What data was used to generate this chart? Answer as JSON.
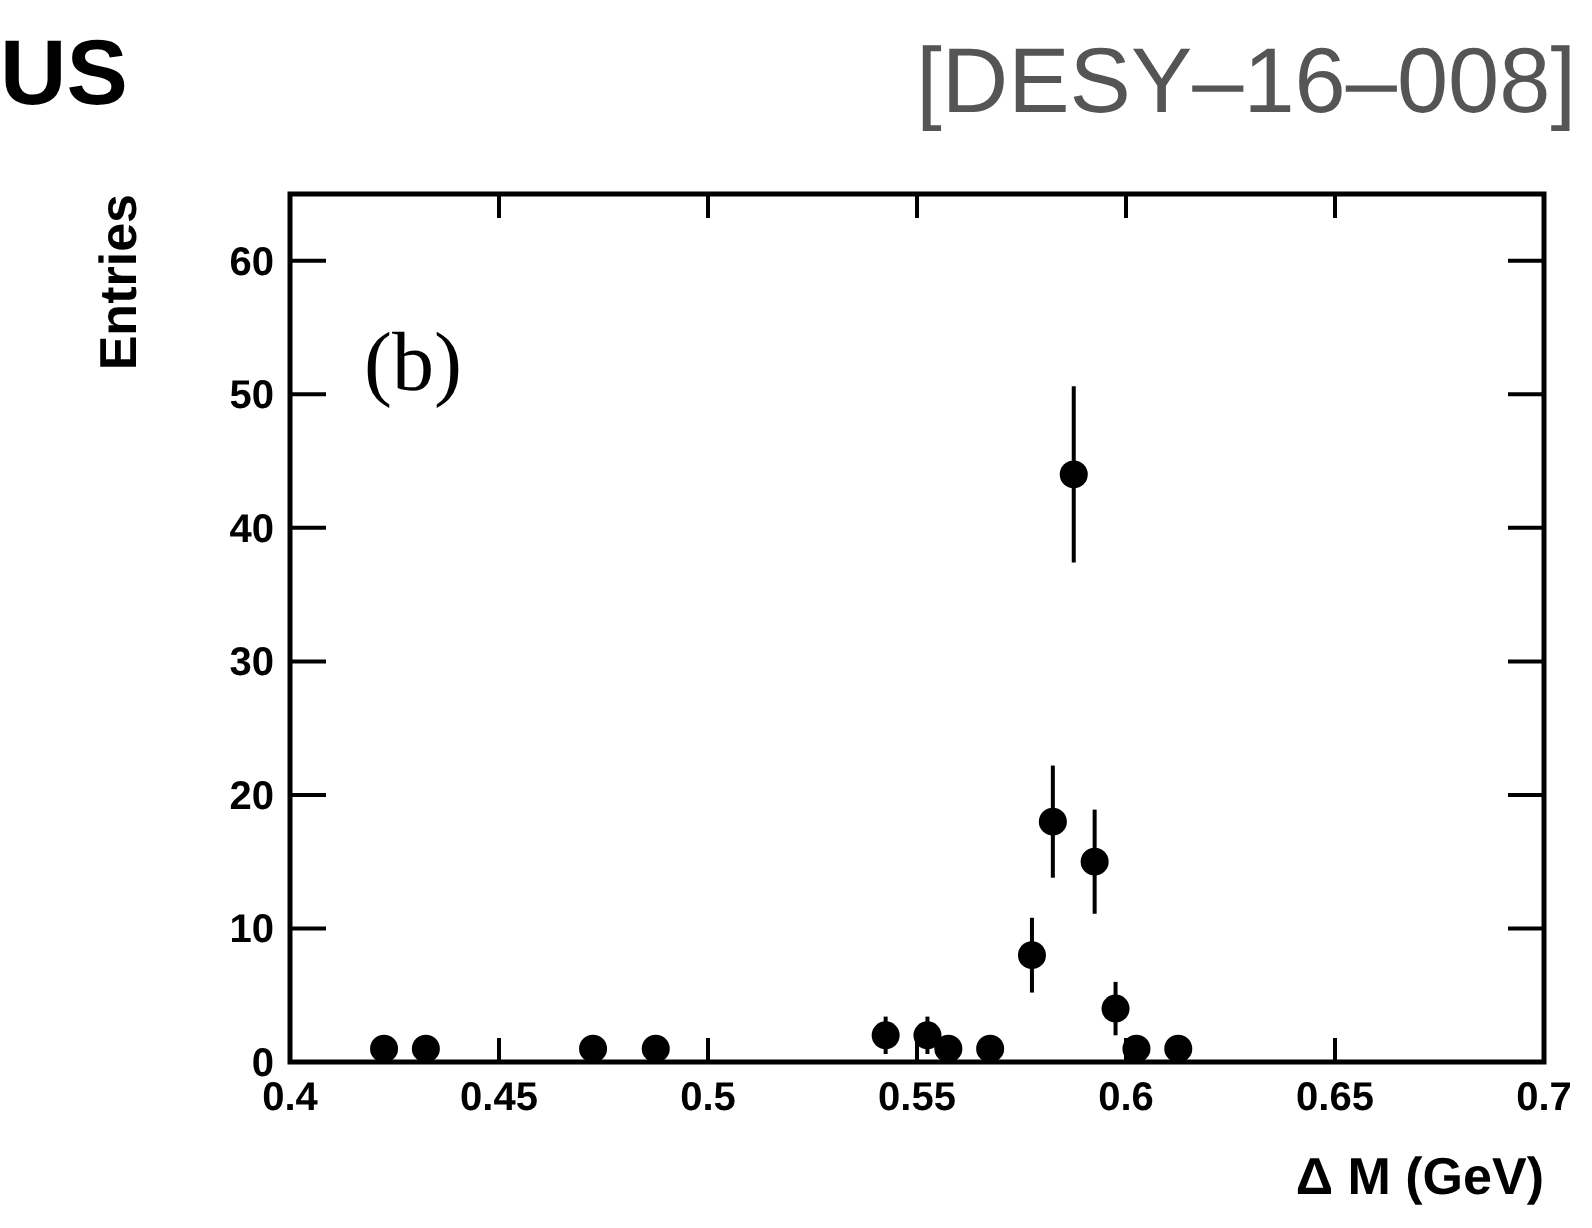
{
  "chart_data": {
    "type": "scatter",
    "xlabel": "Δ M (GeV)",
    "ylabel": "Entries",
    "annotations": [
      "US",
      "[DESY–16–008]",
      "(b)"
    ],
    "x": [
      0.4225,
      0.4325,
      0.4725,
      0.4875,
      0.5425,
      0.5525,
      0.5575,
      0.5675,
      0.5775,
      0.5825,
      0.5875,
      0.5925,
      0.5975,
      0.6025,
      0.6125
    ],
    "series": [
      {
        "color": "#000000",
        "values": [
          1,
          1,
          1,
          1,
          2,
          2,
          1,
          1,
          8,
          18,
          44,
          15,
          4,
          1,
          1
        ],
        "errors": [
          1,
          1,
          1,
          1,
          1.4,
          1.4,
          1,
          1,
          2.8,
          4.2,
          6.6,
          3.9,
          2,
          1,
          1
        ]
      }
    ],
    "xlim": [
      0.4,
      0.7
    ],
    "xticks": [
      0.4,
      0.45,
      0.5,
      0.55,
      0.6,
      0.65,
      0.7
    ],
    "ylim": [
      0,
      65
    ],
    "yticks": [
      0,
      10,
      20,
      30,
      40,
      50,
      60
    ],
    "grid": false,
    "marker": "circle"
  }
}
